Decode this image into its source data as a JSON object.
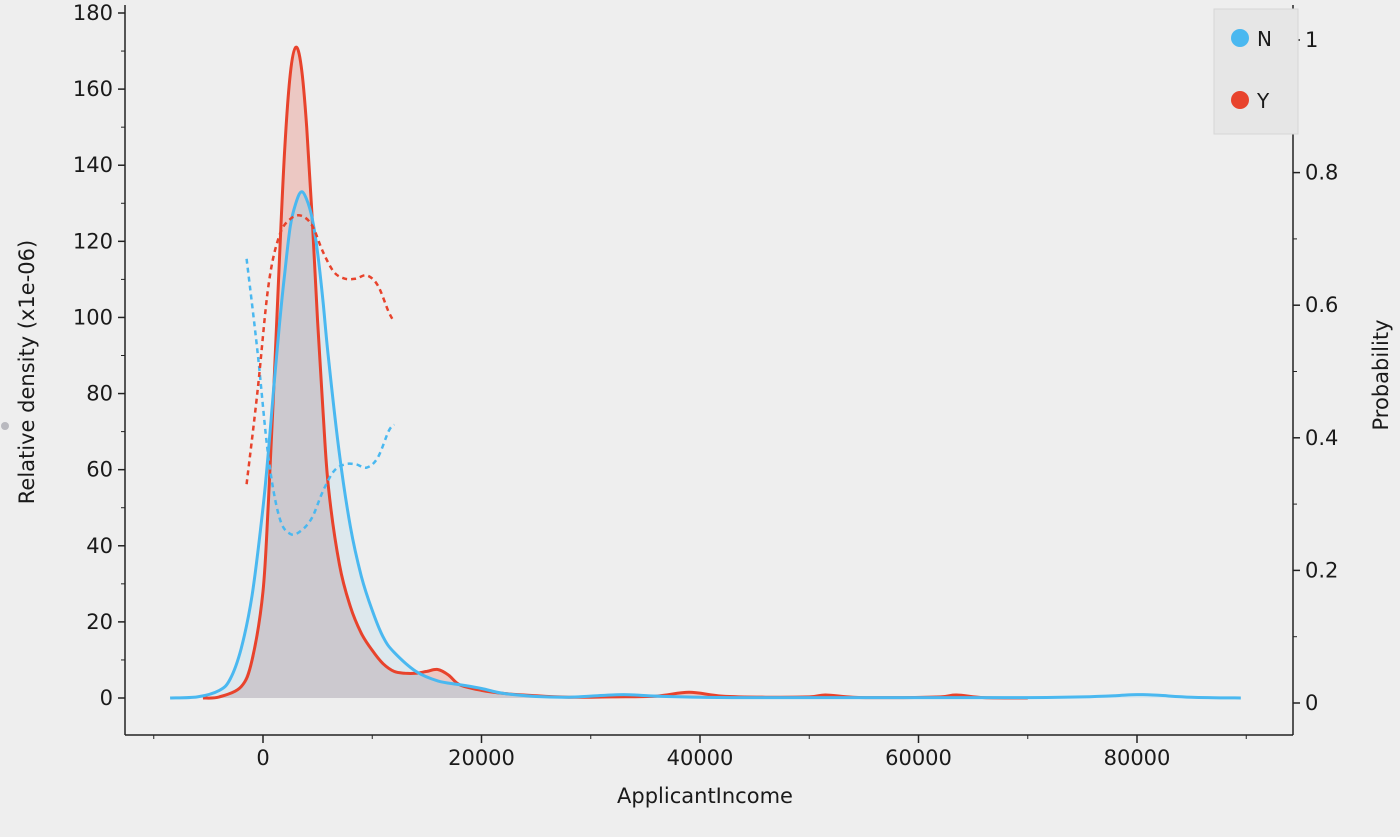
{
  "chart_data": {
    "type": "line",
    "xlabel": "ApplicantIncome",
    "ylabel": "Relative density (x1e-06)",
    "y2label": "Probability",
    "xlim": [
      -12500,
      93000
    ],
    "ylim": [
      -9,
      180
    ],
    "y2lim": [
      -0.05,
      1.05
    ],
    "xticks": [
      0,
      20000,
      40000,
      60000,
      80000
    ],
    "yticks": [
      0,
      20,
      40,
      60,
      80,
      100,
      120,
      140,
      160,
      180
    ],
    "y2ticks": [
      0,
      0.2,
      0.4,
      0.6,
      0.8,
      1
    ],
    "y2tick_labels": [
      "0",
      "0.2",
      "0.4",
      "0.6",
      "0.8",
      "1"
    ],
    "grid": false,
    "legend_position": "top-right",
    "colors": {
      "N": "#4ab8f0",
      "Y": "#e8432c",
      "overlap_fill": "#c9c9d0"
    },
    "series": [
      {
        "name": "N",
        "kind": "density",
        "color": "#4ab8f0",
        "x": [
          -8500,
          -6000,
          -4000,
          -3000,
          -2000,
          -1000,
          0,
          500,
          1000,
          1500,
          2000,
          2500,
          3000,
          3500,
          4000,
          4500,
          5000,
          5500,
          6000,
          7000,
          8000,
          9000,
          10000,
          11000,
          12000,
          14000,
          16000,
          18000,
          20000,
          22000,
          25000,
          28000,
          30000,
          33000,
          36000,
          40000,
          45000,
          50000,
          55000,
          60000,
          65000,
          70000,
          75000,
          78000,
          80000,
          82000,
          85000,
          89500
        ],
        "y": [
          0,
          0.3,
          2,
          5,
          13,
          27,
          50,
          65,
          82,
          98,
          112,
          124,
          130,
          133,
          131,
          126,
          117,
          104,
          89,
          64,
          45,
          32,
          23,
          16,
          12,
          7,
          4.5,
          3.5,
          2.5,
          1.2,
          0.4,
          0.2,
          0.5,
          0.9,
          0.5,
          0.2,
          0.1,
          0.1,
          0.1,
          0.1,
          0.1,
          0.1,
          0.3,
          0.6,
          0.9,
          0.7,
          0.2,
          0
        ]
      },
      {
        "name": "Y",
        "kind": "density",
        "color": "#e8432c",
        "x": [
          -5500,
          -4000,
          -2000,
          -1000,
          0,
          500,
          1000,
          1500,
          2000,
          2500,
          3000,
          3500,
          4000,
          4500,
          5000,
          5500,
          6000,
          7000,
          8000,
          9000,
          10000,
          11000,
          12000,
          13000,
          14000,
          15000,
          16000,
          17000,
          18000,
          20000,
          22000,
          25000,
          28000,
          32000,
          36000,
          39000,
          42000,
          46000,
          50000,
          51500,
          54000,
          58000,
          62000,
          63500,
          66000,
          70000
        ],
        "y": [
          0,
          0.3,
          3,
          10,
          28,
          52,
          82,
          115,
          145,
          164,
          171,
          166,
          150,
          126,
          99,
          75,
          55,
          35,
          24,
          17,
          12.5,
          9,
          7,
          6.5,
          6.5,
          7,
          7.5,
          6,
          3.5,
          2,
          1.2,
          0.6,
          0.2,
          0.3,
          0.5,
          1.5,
          0.5,
          0.2,
          0.3,
          0.8,
          0.2,
          0.1,
          0.3,
          0.8,
          0.1,
          0
        ]
      },
      {
        "name": "N",
        "kind": "probability",
        "color": "#4ab8f0",
        "dashed": true,
        "x": [
          -1500,
          -500,
          500,
          1500,
          2500,
          3500,
          4500,
          5500,
          6500,
          7500,
          8500,
          9500,
          10500,
          11500,
          12000
        ],
        "y": [
          0.67,
          0.53,
          0.37,
          0.28,
          0.255,
          0.26,
          0.28,
          0.32,
          0.35,
          0.36,
          0.36,
          0.355,
          0.37,
          0.41,
          0.42
        ]
      },
      {
        "name": "Y",
        "kind": "probability",
        "color": "#e8432c",
        "dashed": true,
        "x": [
          -1500,
          -500,
          500,
          1500,
          2500,
          3500,
          4500,
          5500,
          6500,
          7500,
          8500,
          9500,
          10500,
          11500,
          12000
        ],
        "y": [
          0.33,
          0.47,
          0.63,
          0.705,
          0.73,
          0.735,
          0.72,
          0.68,
          0.65,
          0.64,
          0.64,
          0.645,
          0.63,
          0.59,
          0.575
        ]
      }
    ],
    "legend": [
      {
        "name": "N",
        "color": "#4ab8f0"
      },
      {
        "name": "Y",
        "color": "#e8432c"
      }
    ]
  }
}
